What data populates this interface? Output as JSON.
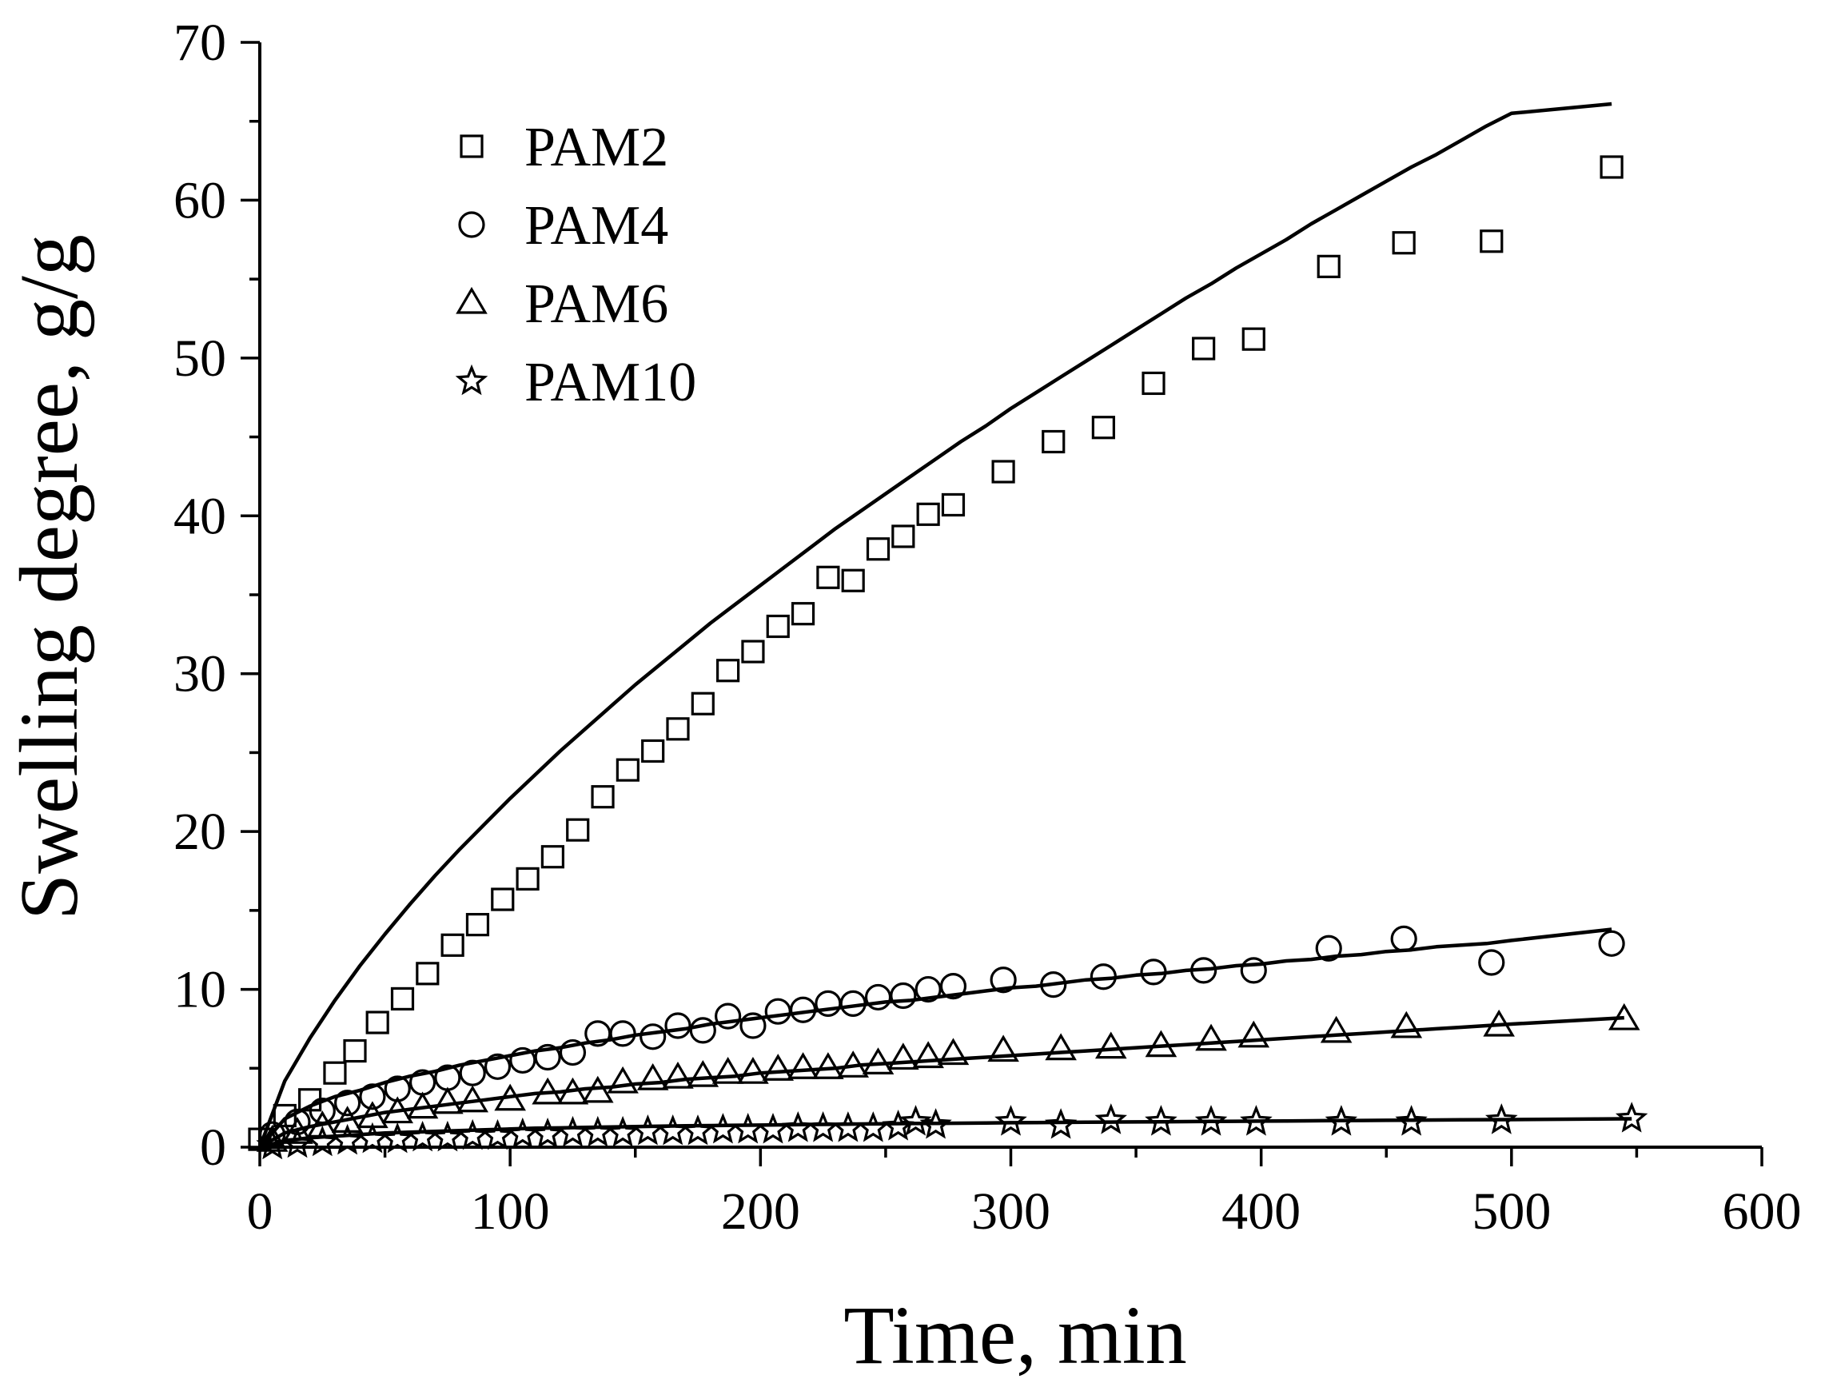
{
  "chart_data": {
    "type": "scatter",
    "xlabel": "Time, min",
    "ylabel": "Swelling degree, g/g",
    "xlim": [
      0,
      600
    ],
    "ylim": [
      0,
      70
    ],
    "xticks": [
      "0",
      "100",
      "200",
      "300",
      "400",
      "500",
      "600"
    ],
    "yticks": [
      "0",
      "10",
      "20",
      "30",
      "40",
      "50",
      "60",
      "70"
    ],
    "grid": false,
    "legend_position": "top-left",
    "series": [
      {
        "name": "PAM2",
        "marker": "square",
        "x": [
          0,
          10,
          20,
          30,
          38,
          47,
          57,
          67,
          77,
          87,
          97,
          107,
          117,
          127,
          137,
          147,
          157,
          167,
          177,
          187,
          197,
          207,
          217,
          227,
          237,
          247,
          257,
          267,
          277,
          297,
          317,
          337,
          357,
          377,
          397,
          427,
          457,
          492,
          540
        ],
        "y": [
          0.5,
          2,
          3,
          4.7,
          6.1,
          7.9,
          9.4,
          11,
          12.8,
          14.1,
          15.7,
          17,
          18.4,
          20.1,
          22.2,
          23.9,
          25.1,
          26.5,
          28.1,
          30.2,
          31.4,
          33,
          33.8,
          36.1,
          35.9,
          37.9,
          38.7,
          40.1,
          40.7,
          42.8,
          44.7,
          45.6,
          48.4,
          50.6,
          51.2,
          55.8,
          57.3,
          57.4,
          62.1
        ],
        "fit_y": [
          0,
          4.2,
          6.9,
          9.3,
          11.5,
          13.5,
          15.4,
          17.2,
          18.9,
          20.5,
          22.1,
          23.6,
          25.1,
          26.5,
          27.9,
          29.3,
          30.6,
          31.9,
          33.2,
          34.4,
          35.6,
          36.8,
          38.0,
          39.2,
          40.3,
          41.4,
          42.5,
          43.6,
          44.7,
          45.7,
          46.8,
          47.8,
          48.8,
          49.8,
          50.8,
          51.8,
          52.8,
          53.8,
          54.7,
          55.7,
          56.6,
          57.5,
          58.5,
          59.4,
          60.3,
          61.2,
          62.1,
          62.9,
          63.8,
          64.7,
          65.5,
          66.1
        ]
      },
      {
        "name": "PAM4",
        "marker": "circle",
        "x": [
          5,
          15,
          25,
          35,
          45,
          55,
          65,
          75,
          85,
          95,
          105,
          115,
          125,
          135,
          145,
          157,
          167,
          177,
          187,
          197,
          207,
          217,
          227,
          237,
          247,
          257,
          267,
          277,
          297,
          317,
          337,
          357,
          377,
          397,
          427,
          457,
          492,
          540
        ],
        "y": [
          0.8,
          1.6,
          2.3,
          2.8,
          3.2,
          3.7,
          4.1,
          4.4,
          4.7,
          5.1,
          5.5,
          5.7,
          6.0,
          7.2,
          7.2,
          7.0,
          7.7,
          7.4,
          8.3,
          7.7,
          8.6,
          8.7,
          9.1,
          9.1,
          9.5,
          9.6,
          10.0,
          10.2,
          10.6,
          10.3,
          10.8,
          11.1,
          11.2,
          11.2,
          12.6,
          13.2,
          11.7,
          12.9
        ],
        "fit_y": [
          0,
          1.8,
          2.6,
          3.2,
          3.6,
          4.1,
          4.5,
          4.8,
          5.2,
          5.5,
          5.8,
          6.1,
          6.3,
          6.6,
          6.8,
          7.1,
          7.3,
          7.5,
          7.8,
          8.0,
          8.2,
          8.4,
          8.6,
          8.8,
          9.0,
          9.2,
          9.3,
          9.5,
          9.7,
          9.9,
          10.1,
          10.2,
          10.4,
          10.6,
          10.7,
          10.9,
          11.0,
          11.2,
          11.3,
          11.5,
          11.6,
          11.8,
          11.9,
          12.1,
          12.2,
          12.4,
          12.5,
          12.7,
          12.8,
          12.9,
          13.1,
          13.8
        ]
      },
      {
        "name": "PAM6",
        "marker": "triangle",
        "x": [
          5,
          15,
          25,
          35,
          45,
          55,
          65,
          75,
          85,
          100,
          115,
          125,
          135,
          145,
          157,
          167,
          177,
          187,
          197,
          207,
          217,
          227,
          237,
          247,
          257,
          267,
          277,
          297,
          320,
          340,
          360,
          380,
          397,
          430,
          458,
          495,
          545
        ],
        "y": [
          0.4,
          0.9,
          1.3,
          1.6,
          1.9,
          2.2,
          2.5,
          2.8,
          2.9,
          3.0,
          3.4,
          3.4,
          3.5,
          4.1,
          4.3,
          4.4,
          4.5,
          4.7,
          4.7,
          4.9,
          5.0,
          5.0,
          5.1,
          5.3,
          5.6,
          5.7,
          5.9,
          6.1,
          6.2,
          6.3,
          6.4,
          6.8,
          7.0,
          7.3,
          7.6,
          7.7,
          8.1
        ],
        "fit_y": [
          0,
          0.9,
          1.3,
          1.6,
          1.9,
          2.2,
          2.4,
          2.6,
          2.8,
          3.0,
          3.2,
          3.4,
          3.5,
          3.7,
          3.8,
          4.0,
          4.1,
          4.3,
          4.4,
          4.5,
          4.7,
          4.8,
          4.9,
          5.0,
          5.2,
          5.3,
          5.4,
          5.5,
          5.6,
          5.7,
          5.8,
          5.9,
          6.0,
          6.1,
          6.2,
          6.3,
          6.4,
          6.5,
          6.6,
          6.7,
          6.8,
          6.9,
          7.0,
          7.1,
          7.2,
          7.3,
          7.4,
          7.5,
          7.6,
          7.7,
          7.8,
          8.2
        ]
      },
      {
        "name": "PAM10",
        "marker": "star",
        "x": [
          5,
          15,
          25,
          35,
          45,
          55,
          65,
          75,
          85,
          95,
          105,
          115,
          125,
          135,
          145,
          155,
          165,
          175,
          185,
          195,
          205,
          215,
          225,
          235,
          245,
          255,
          262,
          270,
          300,
          320,
          340,
          360,
          380,
          398,
          432,
          460,
          496,
          548
        ],
        "y": [
          0.1,
          0.2,
          0.3,
          0.4,
          0.5,
          0.5,
          0.6,
          0.6,
          0.7,
          0.7,
          0.8,
          0.8,
          0.9,
          0.9,
          0.9,
          1.0,
          1.0,
          1.0,
          1.1,
          1.1,
          1.1,
          1.2,
          1.2,
          1.2,
          1.2,
          1.3,
          1.6,
          1.4,
          1.6,
          1.4,
          1.7,
          1.6,
          1.6,
          1.6,
          1.6,
          1.6,
          1.7,
          1.8
        ],
        "fit_y": [
          0,
          0.4,
          0.6,
          0.7,
          0.8,
          0.9,
          0.95,
          1.0,
          1.05,
          1.1,
          1.15,
          1.2,
          1.22,
          1.25,
          1.28,
          1.3,
          1.33,
          1.35,
          1.37,
          1.39,
          1.4,
          1.42,
          1.44,
          1.45,
          1.47,
          1.48,
          1.5,
          1.51,
          1.52,
          1.53,
          1.55,
          1.56,
          1.57,
          1.58,
          1.59,
          1.6,
          1.61,
          1.62,
          1.63,
          1.64,
          1.65,
          1.66,
          1.67,
          1.68,
          1.69,
          1.7,
          1.71,
          1.72,
          1.73,
          1.74,
          1.75,
          1.8
        ]
      }
    ]
  }
}
